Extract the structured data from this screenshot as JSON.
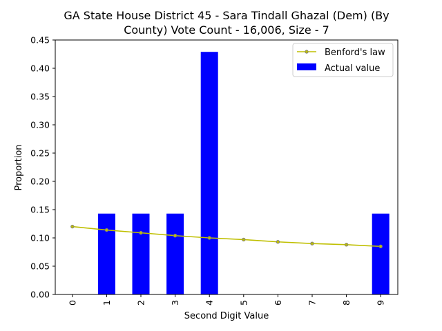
{
  "chart_data": {
    "type": "bar",
    "title_line1": "GA State House District 45 - Sara Tindall Ghazal (Dem) (By",
    "title_line2": "County) Vote Count - 16,006, Size - 7",
    "xlabel": "Second Digit Value",
    "ylabel": "Proportion",
    "categories": [
      "0",
      "1",
      "2",
      "3",
      "4",
      "5",
      "6",
      "7",
      "8",
      "9"
    ],
    "ylim": [
      0,
      0.45
    ],
    "yticks": [
      "0.00",
      "0.05",
      "0.10",
      "0.15",
      "0.20",
      "0.25",
      "0.30",
      "0.35",
      "0.40",
      "0.45"
    ],
    "legend_position": "top-right",
    "series": [
      {
        "name": "Benford's law",
        "kind": "line",
        "color": "#bfbf00",
        "values": [
          0.12,
          0.114,
          0.109,
          0.104,
          0.1,
          0.097,
          0.093,
          0.09,
          0.088,
          0.085
        ]
      },
      {
        "name": "Actual value",
        "kind": "bar",
        "color": "#0000ff",
        "values": [
          0,
          0.143,
          0.143,
          0.143,
          0.429,
          0,
          0,
          0,
          0,
          0.143
        ]
      }
    ]
  }
}
